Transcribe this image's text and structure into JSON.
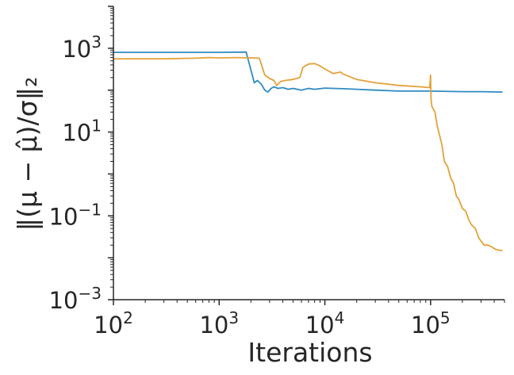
{
  "chart_data": {
    "type": "line",
    "xlabel": "Iterations",
    "ylabel": "‖(μ − μ̂)/σ‖₂",
    "xscale": "log",
    "yscale": "log",
    "xlim": [
      100,
      500000
    ],
    "ylim": [
      0.001,
      10000
    ],
    "x_ticks": [
      {
        "base": "10",
        "exp": "2",
        "value": 100
      },
      {
        "base": "10",
        "exp": "3",
        "value": 1000
      },
      {
        "base": "10",
        "exp": "4",
        "value": 10000
      },
      {
        "base": "10",
        "exp": "5",
        "value": 100000
      }
    ],
    "y_ticks": [
      {
        "base": "10",
        "exp": "−3",
        "value": 0.001
      },
      {
        "base": "10",
        "exp": "−1",
        "value": 0.1
      },
      {
        "base": "10",
        "exp": "1",
        "value": 10
      },
      {
        "base": "10",
        "exp": "3",
        "value": 1000
      }
    ],
    "grid": false,
    "legend": "none",
    "series": [
      {
        "color": "#2e8bc0",
        "points": [
          [
            100,
            800
          ],
          [
            300,
            800
          ],
          [
            1000,
            800
          ],
          [
            1800,
            810
          ],
          [
            2000,
            300
          ],
          [
            2150,
            150
          ],
          [
            2300,
            170
          ],
          [
            2500,
            140
          ],
          [
            2700,
            100
          ],
          [
            2900,
            90
          ],
          [
            3100,
            110
          ],
          [
            3300,
            120
          ],
          [
            3600,
            110
          ],
          [
            4000,
            115
          ],
          [
            4500,
            105
          ],
          [
            5000,
            110
          ],
          [
            6000,
            100
          ],
          [
            7000,
            110
          ],
          [
            8000,
            105
          ],
          [
            10000,
            112
          ],
          [
            12000,
            110
          ],
          [
            15000,
            108
          ],
          [
            20000,
            105
          ],
          [
            30000,
            100
          ],
          [
            50000,
            95
          ],
          [
            100000,
            95
          ],
          [
            200000,
            92
          ],
          [
            300000,
            92
          ],
          [
            480000,
            90
          ]
        ]
      },
      {
        "color": "#e3a23a",
        "points": [
          [
            100,
            560
          ],
          [
            300,
            560
          ],
          [
            600,
            580
          ],
          [
            800,
            600
          ],
          [
            1000,
            590
          ],
          [
            1500,
            600
          ],
          [
            2000,
            590
          ],
          [
            2400,
            580
          ],
          [
            2700,
            230
          ],
          [
            3000,
            190
          ],
          [
            3300,
            170
          ],
          [
            3500,
            130
          ],
          [
            3800,
            160
          ],
          [
            4200,
            170
          ],
          [
            5000,
            180
          ],
          [
            5800,
            200
          ],
          [
            6200,
            350
          ],
          [
            7000,
            420
          ],
          [
            8000,
            430
          ],
          [
            9000,
            380
          ],
          [
            10000,
            320
          ],
          [
            12000,
            250
          ],
          [
            14000,
            270
          ],
          [
            15000,
            240
          ],
          [
            20000,
            180
          ],
          [
            30000,
            150
          ],
          [
            50000,
            130
          ],
          [
            80000,
            120
          ],
          [
            98000,
            115
          ],
          [
            100000,
            230
          ],
          [
            101000,
            60
          ],
          [
            103000,
            40
          ],
          [
            110000,
            30
          ],
          [
            115000,
            15
          ],
          [
            122000,
            8
          ],
          [
            128000,
            5
          ],
          [
            135000,
            2
          ],
          [
            145000,
            1.5
          ],
          [
            155000,
            0.8
          ],
          [
            165000,
            0.6
          ],
          [
            175000,
            0.3
          ],
          [
            185000,
            0.25
          ],
          [
            200000,
            0.15
          ],
          [
            215000,
            0.13
          ],
          [
            230000,
            0.08
          ],
          [
            245000,
            0.06
          ],
          [
            265000,
            0.05
          ],
          [
            285000,
            0.03
          ],
          [
            300000,
            0.025
          ],
          [
            320000,
            0.02
          ],
          [
            350000,
            0.02
          ],
          [
            380000,
            0.018
          ],
          [
            410000,
            0.016
          ],
          [
            450000,
            0.015
          ],
          [
            480000,
            0.015
          ]
        ]
      }
    ]
  }
}
